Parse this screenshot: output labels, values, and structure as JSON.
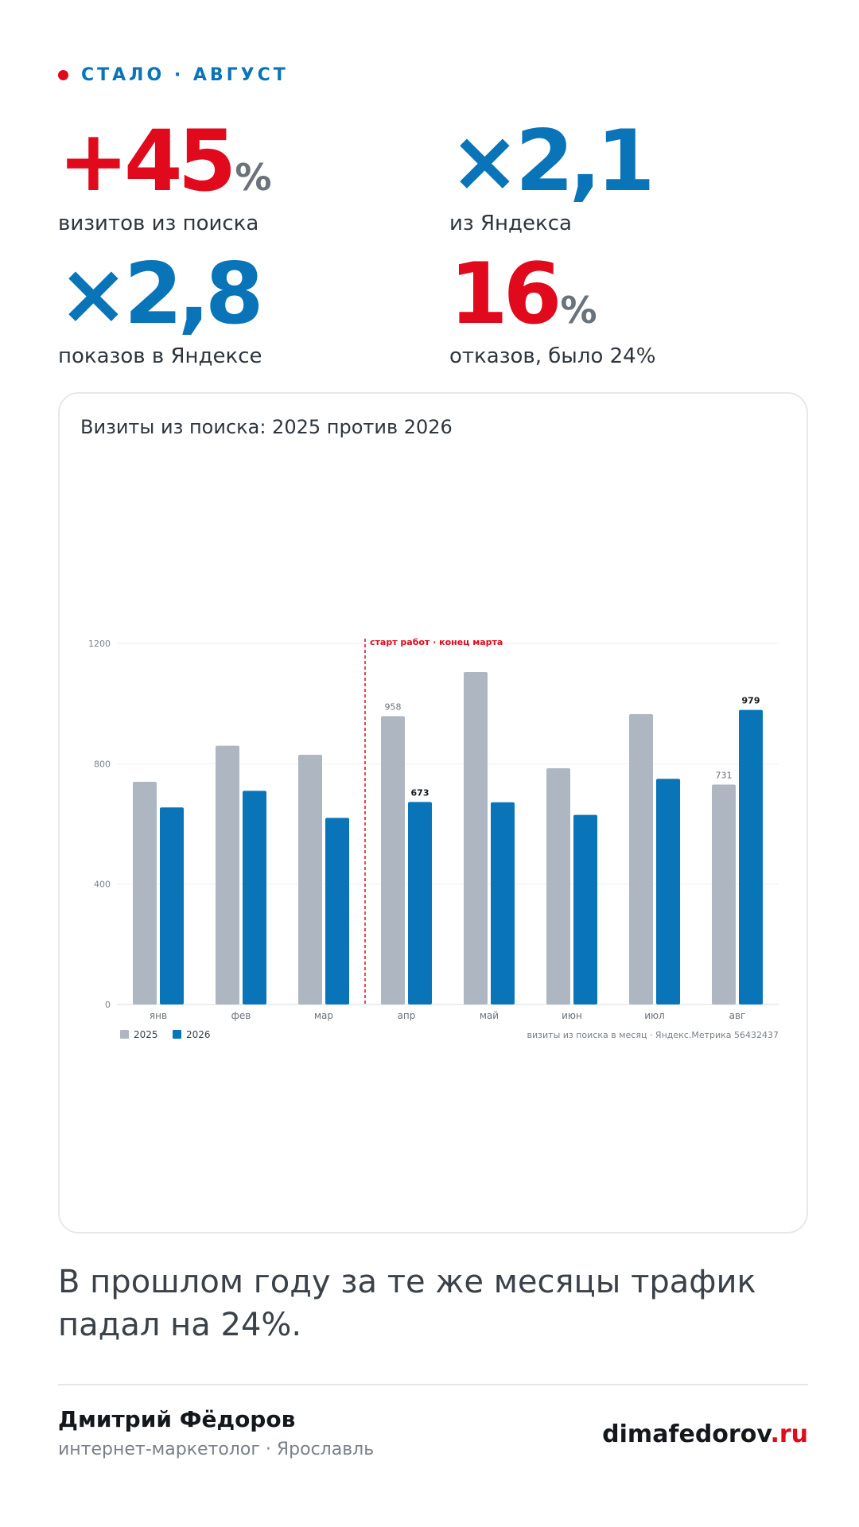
{
  "header": {
    "label": "СТАЛО · АВГУСТ"
  },
  "stats": [
    {
      "value": "+45",
      "unit": "%",
      "caption": "визитов из поиска",
      "color": "#e10a1c"
    },
    {
      "value": "×2,1",
      "unit": "",
      "caption": "из Яндекса",
      "color": "#0a74b9"
    },
    {
      "value": "×2,8",
      "unit": "",
      "caption": "показов в Яндексе",
      "color": "#0a74b9"
    },
    {
      "value": "16",
      "unit": "%",
      "caption": "отказов, было 24%",
      "color": "#e10a1c"
    }
  ],
  "chart_data": {
    "type": "bar",
    "title": "Визиты из поиска: 2025 против 2026",
    "categories": [
      "янв",
      "фев",
      "мар",
      "апр",
      "май",
      "июн",
      "июл",
      "авг"
    ],
    "series": [
      {
        "name": "2025",
        "color": "#adb6c1",
        "values": [
          740,
          860,
          830,
          958,
          1105,
          785,
          965,
          731
        ]
      },
      {
        "name": "2026",
        "color": "#0a74b9",
        "values": [
          655,
          710,
          620,
          673,
          672,
          630,
          750,
          979
        ]
      }
    ],
    "ylim": [
      0,
      1200
    ],
    "yticks": [
      0,
      400,
      800,
      1200
    ],
    "grid": true,
    "legend": "bottom-left",
    "data_labels": [
      {
        "series": 0,
        "index": 3,
        "text": "958"
      },
      {
        "series": 1,
        "index": 3,
        "text": "673"
      },
      {
        "series": 0,
        "index": 7,
        "text": "731"
      },
      {
        "series": 1,
        "index": 7,
        "text": "979"
      }
    ],
    "annotation": {
      "after_index": 2,
      "text": "старт работ · конец марта"
    },
    "source_note": "визиты из поиска в месяц · Яндекс.Метрика 56432437"
  },
  "note": "В прошлом году за те же месяцы трафик падал на 24%.",
  "footer": {
    "author": "Дмитрий Фёдоров",
    "role": "интернет-маркетолог · Ярославль",
    "site_main": "dimafedorov",
    "site_tld": ".ru"
  }
}
